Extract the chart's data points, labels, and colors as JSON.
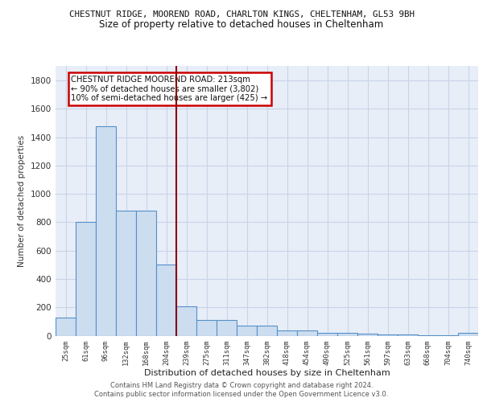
{
  "title_line1": "CHESTNUT RIDGE, MOOREND ROAD, CHARLTON KINGS, CHELTENHAM, GL53 9BH",
  "title_line2": "Size of property relative to detached houses in Cheltenham",
  "xlabel": "Distribution of detached houses by size in Cheltenham",
  "ylabel": "Number of detached properties",
  "categories": [
    "25sqm",
    "61sqm",
    "96sqm",
    "132sqm",
    "168sqm",
    "204sqm",
    "239sqm",
    "275sqm",
    "311sqm",
    "347sqm",
    "382sqm",
    "418sqm",
    "454sqm",
    "490sqm",
    "525sqm",
    "561sqm",
    "597sqm",
    "633sqm",
    "668sqm",
    "704sqm",
    "740sqm"
  ],
  "values": [
    130,
    800,
    1480,
    880,
    880,
    500,
    205,
    110,
    110,
    70,
    70,
    35,
    35,
    20,
    20,
    15,
    10,
    10,
    5,
    5,
    20
  ],
  "bar_color": "#ccddf0",
  "bar_edge_color": "#5590c8",
  "annotation_text": "CHESTNUT RIDGE MOOREND ROAD: 213sqm\n← 90% of detached houses are smaller (3,802)\n10% of semi-detached houses are larger (425) →",
  "annotation_box_color": "#ffffff",
  "annotation_box_edge": "#cc0000",
  "vline_color": "#8b0000",
  "vline_x": 5.5,
  "background_color": "#e8eef8",
  "grid_color": "#c8d4e8",
  "footer1": "Contains HM Land Registry data © Crown copyright and database right 2024.",
  "footer2": "Contains public sector information licensed under the Open Government Licence v3.0.",
  "ylim": [
    0,
    1900
  ],
  "yticks": [
    0,
    200,
    400,
    600,
    800,
    1000,
    1200,
    1400,
    1600,
    1800
  ]
}
